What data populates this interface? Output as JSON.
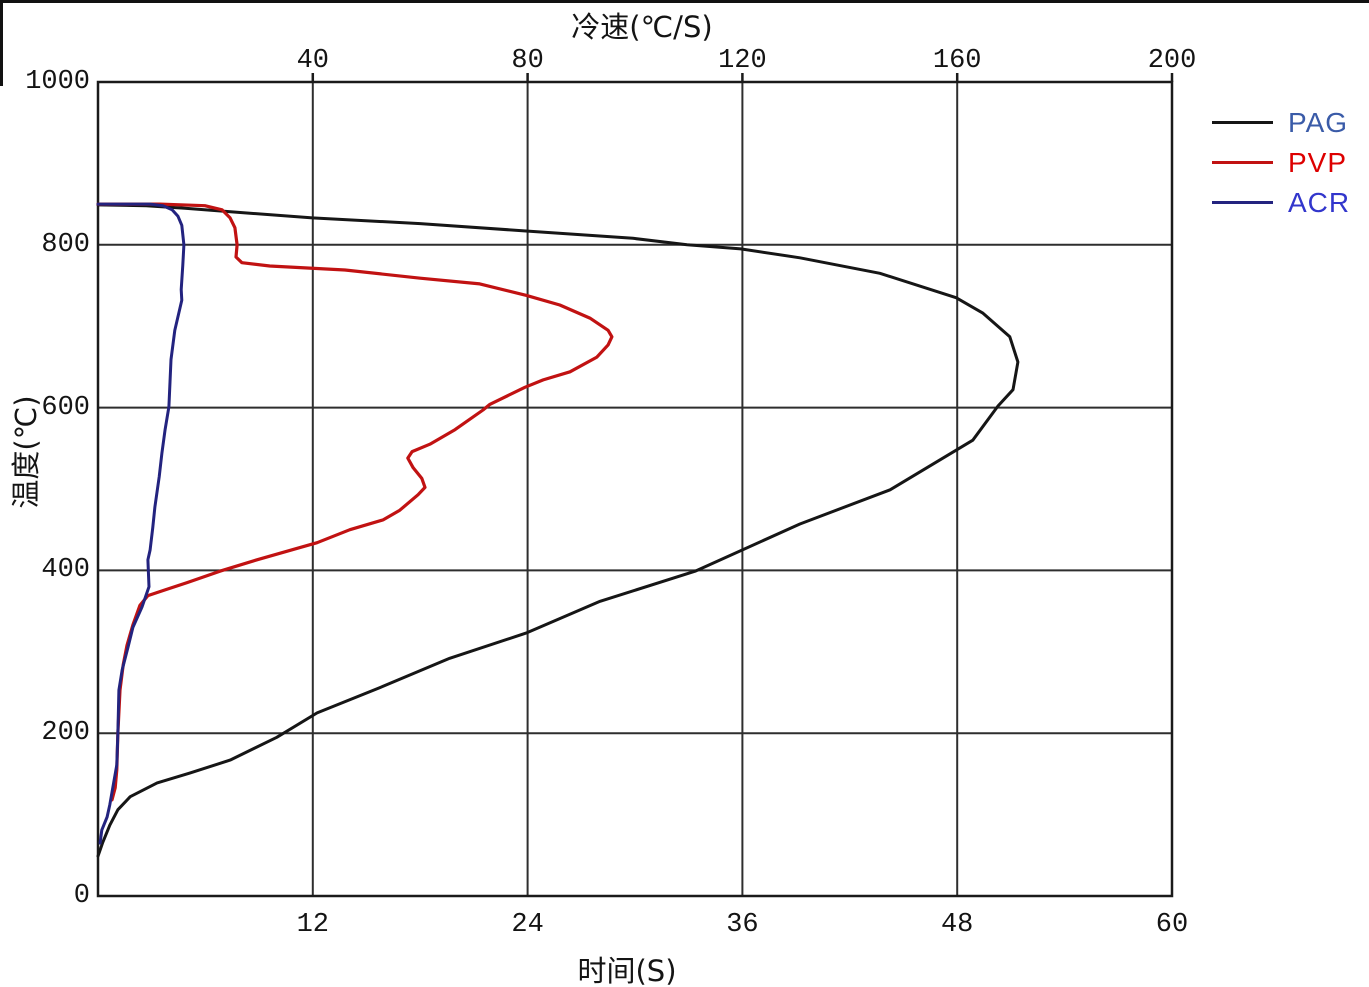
{
  "frame": {
    "background": "#ffffff",
    "edge_line_color": "#111111"
  },
  "chart_data": {
    "type": "line",
    "axes": {
      "top": {
        "label": "冷速(℃/S)",
        "ticks": [
          40,
          80,
          120,
          160,
          200
        ],
        "range": [
          0,
          200
        ]
      },
      "bottom": {
        "label": "时间(S)",
        "ticks": [
          12,
          24,
          36,
          48,
          60
        ],
        "range": [
          0,
          60
        ]
      },
      "left": {
        "label": "温度(℃)",
        "ticks": [
          0,
          200,
          400,
          600,
          800,
          1000
        ],
        "range": [
          0,
          1000
        ]
      }
    },
    "grid": {
      "vertical_at_top_axis": [
        40,
        80,
        120,
        160
      ],
      "horizontal_at_left_axis": [
        200,
        400,
        600,
        800
      ],
      "color": "#2e2e2e",
      "border_color": "#1a1a1a"
    },
    "legend": {
      "position": "top-right",
      "entries": [
        "PAG",
        "PVP",
        "ACR"
      ]
    },
    "series": [
      {
        "name": "PAG",
        "line_color": "#161616",
        "label_color": "#3A5BA8",
        "points_rate_temp": [
          [
            0,
            849
          ],
          [
            9,
            848
          ],
          [
            16.2,
            845
          ],
          [
            28,
            839
          ],
          [
            39.9,
            833
          ],
          [
            60,
            826
          ],
          [
            79.7,
            817
          ],
          [
            99.6,
            808
          ],
          [
            109.7,
            800
          ],
          [
            119.7,
            795
          ],
          [
            130.7,
            784
          ],
          [
            145.6,
            765
          ],
          [
            159.8,
            735
          ],
          [
            164.8,
            716
          ],
          [
            169.8,
            687
          ],
          [
            171.3,
            656
          ],
          [
            170.4,
            622
          ],
          [
            167.6,
            602
          ],
          [
            162.9,
            560
          ],
          [
            147.5,
            499
          ],
          [
            130.7,
            457
          ],
          [
            111.2,
            399
          ],
          [
            93.5,
            362
          ],
          [
            79.7,
            323
          ],
          [
            65.5,
            292
          ],
          [
            52.5,
            256
          ],
          [
            40.8,
            225
          ],
          [
            33.3,
            195
          ],
          [
            24.6,
            167
          ],
          [
            17.1,
            151
          ],
          [
            11,
            139
          ],
          [
            6,
            122
          ],
          [
            3.7,
            106
          ],
          [
            2.2,
            87
          ],
          [
            0.9,
            66
          ],
          [
            0,
            49
          ]
        ]
      },
      {
        "name": "PVP",
        "line_color": "#C11212",
        "label_color": "#DD0000",
        "points_rate_temp": [
          [
            0,
            850
          ],
          [
            11.5,
            850
          ],
          [
            19.9,
            848
          ],
          [
            23.1,
            843
          ],
          [
            24.6,
            833
          ],
          [
            25.5,
            821
          ],
          [
            25.9,
            800
          ],
          [
            25.7,
            785
          ],
          [
            26.8,
            778
          ],
          [
            32,
            774
          ],
          [
            46,
            769
          ],
          [
            60,
            759
          ],
          [
            71.1,
            752
          ],
          [
            79.7,
            738
          ],
          [
            86,
            726
          ],
          [
            91.6,
            710
          ],
          [
            95,
            695
          ],
          [
            95.7,
            687
          ],
          [
            95,
            677
          ],
          [
            92.9,
            662
          ],
          [
            87.9,
            644
          ],
          [
            82.9,
            634
          ],
          [
            79.5,
            625
          ],
          [
            73,
            604
          ],
          [
            71.7,
            597
          ],
          [
            66.5,
            573
          ],
          [
            61.8,
            555
          ],
          [
            58.5,
            546
          ],
          [
            57.7,
            538
          ],
          [
            58.7,
            526
          ],
          [
            60.3,
            513
          ],
          [
            60.9,
            502
          ],
          [
            59.6,
            493
          ],
          [
            56.2,
            474
          ],
          [
            53.1,
            462
          ],
          [
            46.9,
            450
          ],
          [
            40.8,
            434
          ],
          [
            37.6,
            428
          ],
          [
            29.6,
            413
          ],
          [
            22.7,
            399
          ],
          [
            16.6,
            385
          ],
          [
            12.5,
            376
          ],
          [
            9.3,
            369
          ],
          [
            7.8,
            357
          ],
          [
            6.5,
            333
          ],
          [
            5.4,
            308
          ],
          [
            4.7,
            284
          ],
          [
            4.1,
            253
          ],
          [
            3.7,
            201
          ],
          [
            3.5,
            155
          ],
          [
            3.2,
            133
          ],
          [
            2.6,
            118
          ]
        ]
      },
      {
        "name": "ACR",
        "line_color": "#23237F",
        "label_color": "#3236CC",
        "points_rate_temp": [
          [
            0,
            850
          ],
          [
            9.7,
            850
          ],
          [
            12.1,
            848
          ],
          [
            13.8,
            843
          ],
          [
            14.9,
            835
          ],
          [
            15.6,
            824
          ],
          [
            16,
            800
          ],
          [
            15.8,
            775
          ],
          [
            15.5,
            745
          ],
          [
            15.6,
            732
          ],
          [
            14.3,
            695
          ],
          [
            13.6,
            659
          ],
          [
            13.2,
            601
          ],
          [
            12.5,
            573
          ],
          [
            11.9,
            544
          ],
          [
            11.4,
            515
          ],
          [
            10.6,
            478
          ],
          [
            10.2,
            453
          ],
          [
            9.7,
            425
          ],
          [
            9.3,
            413
          ],
          [
            9.5,
            380
          ],
          [
            8.2,
            355
          ],
          [
            6.5,
            330
          ],
          [
            5.6,
            306
          ],
          [
            4.5,
            278
          ],
          [
            3.9,
            253
          ],
          [
            3.7,
            201
          ],
          [
            3.5,
            161
          ],
          [
            2.2,
            112
          ],
          [
            1.7,
            97
          ],
          [
            0.7,
            81
          ],
          [
            0.4,
            65
          ]
        ]
      }
    ]
  }
}
